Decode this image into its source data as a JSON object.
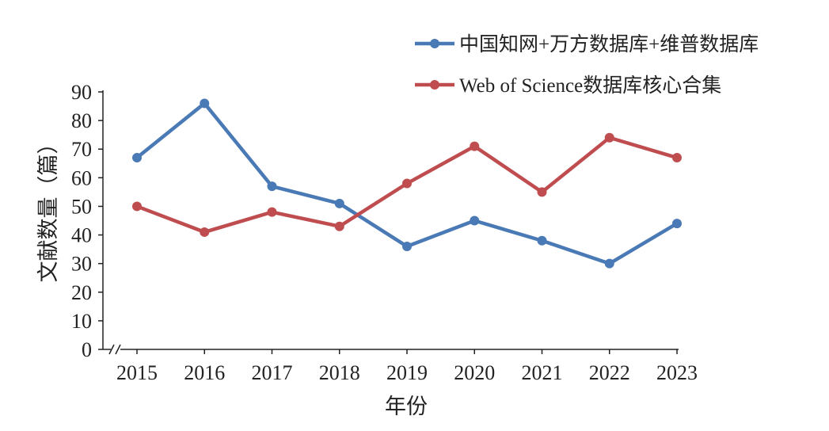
{
  "chart_data": {
    "type": "line",
    "title": "",
    "xlabel": "年份",
    "ylabel": "文献数量（篇）",
    "categories": [
      "2015",
      "2016",
      "2017",
      "2018",
      "2019",
      "2020",
      "2021",
      "2022",
      "2023"
    ],
    "ylim": [
      0,
      90
    ],
    "yticks": [
      0,
      10,
      20,
      30,
      40,
      50,
      60,
      70,
      80,
      90
    ],
    "grid": false,
    "legend_position": "top-right",
    "series": [
      {
        "name": "中国知网+万方数据库+维普数据库",
        "color": "#4a7ab5",
        "values": [
          67,
          86,
          57,
          51,
          36,
          45,
          38,
          30,
          44
        ]
      },
      {
        "name": "Web of Science数据库核心合集",
        "color": "#bf4d4f",
        "values": [
          50,
          41,
          48,
          43,
          58,
          71,
          55,
          74,
          67
        ]
      }
    ]
  }
}
